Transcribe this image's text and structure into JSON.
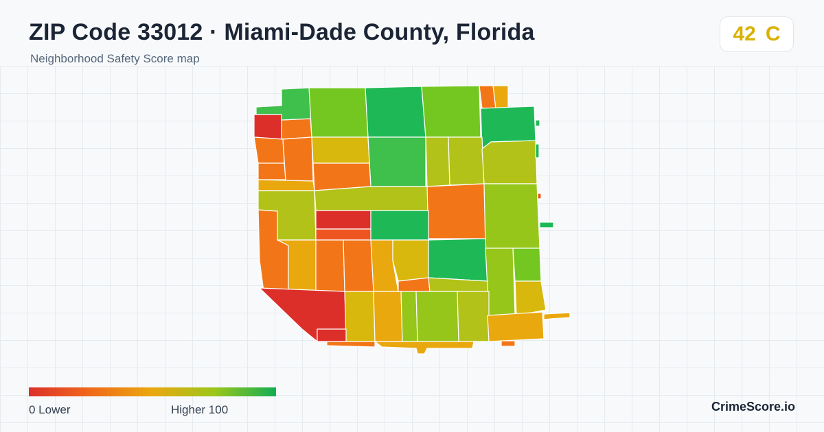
{
  "header": {
    "title": "ZIP Code 33012 · Miami-Dade County, Florida",
    "subtitle": "Neighborhood Safety Score map"
  },
  "score": {
    "value": "42",
    "grade": "C",
    "color": "#d9b100"
  },
  "legend": {
    "min_label": "0  Lower",
    "max_label": "Higher  100",
    "colors": [
      "#dc2f2a",
      "#f06a1a",
      "#eaa80f",
      "#9bc61a",
      "#13ad52"
    ]
  },
  "brand": "CrimeScore.io",
  "palette": {
    "red": "#dc2f2a",
    "red_orange": "#ef5520",
    "orange": "#f27618",
    "amber": "#eaa80f",
    "gold": "#d8b80c",
    "olive": "#b3c218",
    "lime": "#96c61a",
    "yellow_green": "#74c720",
    "green": "#3fbf4b",
    "emerald": "#1eb956"
  },
  "map_regions": [
    {
      "color": "red"
    },
    {
      "color": "orange"
    },
    {
      "color": "orange"
    },
    {
      "color": "green"
    },
    {
      "color": "yellow_green"
    },
    {
      "color": "emerald"
    },
    {
      "color": "yellow_green"
    },
    {
      "color": "orange"
    },
    {
      "color": "amber"
    },
    {
      "color": "emerald"
    },
    {
      "color": "orange"
    },
    {
      "color": "orange"
    },
    {
      "color": "gold"
    },
    {
      "color": "green"
    },
    {
      "color": "olive"
    },
    {
      "color": "olive"
    },
    {
      "color": "olive"
    },
    {
      "color": "amber"
    },
    {
      "color": "orange"
    },
    {
      "color": "olive"
    },
    {
      "color": "olive"
    },
    {
      "color": "orange"
    },
    {
      "color": "lime"
    },
    {
      "color": "red"
    },
    {
      "color": "red_orange"
    },
    {
      "color": "emerald"
    },
    {
      "color": "orange"
    },
    {
      "color": "amber"
    },
    {
      "color": "orange"
    },
    {
      "color": "orange"
    },
    {
      "color": "amber"
    },
    {
      "color": "gold"
    },
    {
      "color": "emerald"
    },
    {
      "color": "lime"
    },
    {
      "color": "yellow_green"
    },
    {
      "color": "orange"
    },
    {
      "color": "olive"
    },
    {
      "color": "gold"
    },
    {
      "color": "red"
    },
    {
      "color": "gold"
    },
    {
      "color": "amber"
    },
    {
      "color": "lime"
    },
    {
      "color": "lime"
    },
    {
      "color": "olive"
    },
    {
      "color": "amber"
    },
    {
      "color": "red"
    },
    {
      "color": "orange"
    },
    {
      "color": "orange"
    },
    {
      "color": "amber"
    },
    {
      "color": "amber"
    },
    {
      "color": "emerald"
    },
    {
      "color": "emerald"
    },
    {
      "color": "emerald"
    },
    {
      "color": "red_orange"
    }
  ]
}
